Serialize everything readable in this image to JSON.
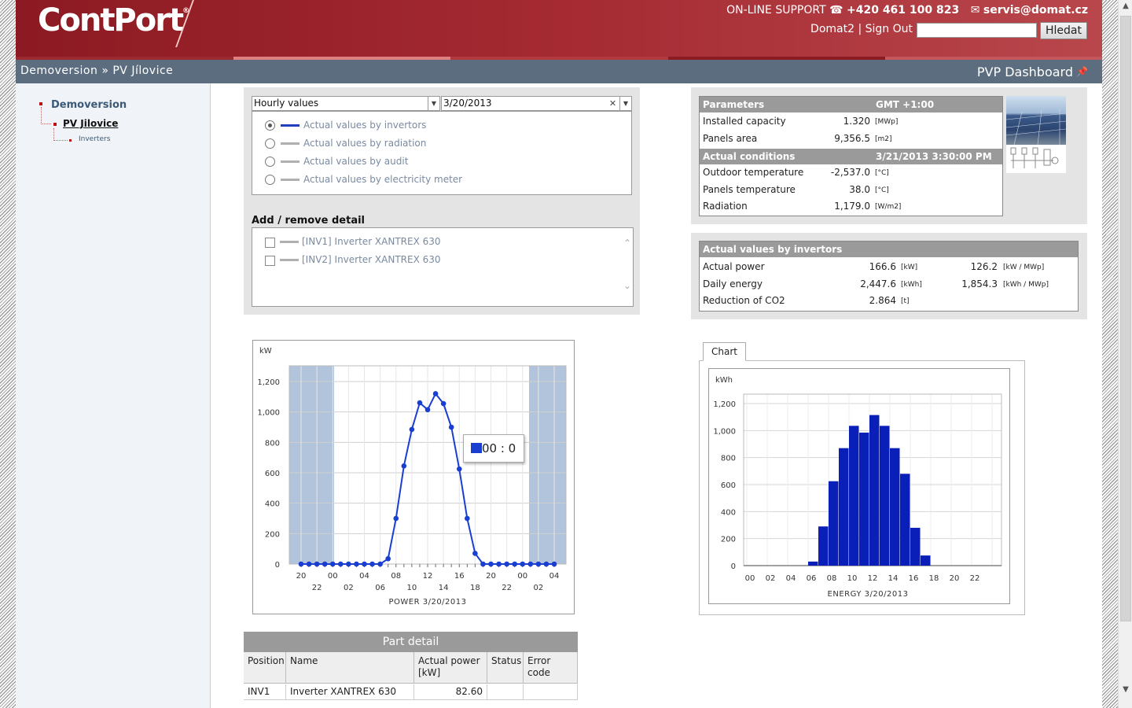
{
  "header": {
    "logo": "ContPort",
    "logo_reg": "®",
    "support_label": "ON-LINE SUPPORT",
    "phone": "+420 461 100 823",
    "email": "servis@domat.cz",
    "user_links": "Domat2 | Sign Out",
    "search_button": "Hledat"
  },
  "breadcrumb": {
    "root": "Demoversion",
    "sep": "»",
    "current": "PV Jílovice",
    "page_title": "PVP Dashboard"
  },
  "sidebar": {
    "items": [
      {
        "label": "Demoversion"
      },
      {
        "label": "PV Jilovice"
      },
      {
        "label": "Inverters"
      }
    ]
  },
  "controls": {
    "interval": "Hourly values",
    "date": "3/20/2013",
    "options": [
      {
        "label": "Actual values by invertors",
        "selected": true,
        "color": "#1f3fbf"
      },
      {
        "label": "Actual values by radiation",
        "selected": false,
        "color": "#b0b0b0"
      },
      {
        "label": "Actual values by audit",
        "selected": false,
        "color": "#b0b0b0"
      },
      {
        "label": "Actual values by electricity meter",
        "selected": false,
        "color": "#b0b0b0"
      }
    ],
    "detail_title": "Add / remove detail",
    "details": [
      {
        "label": "[INV1] Inverter XANTREX 630",
        "checked": false
      },
      {
        "label": "[INV2] Inverter XANTREX 630",
        "checked": false
      }
    ]
  },
  "parameters": {
    "title": "Parameters",
    "timezone": "GMT +1:00",
    "rows": [
      {
        "label": "Installed capacity",
        "value": "1.320",
        "unit": "[MWp]"
      },
      {
        "label": "Panels area",
        "value": "9,356.5",
        "unit": "[m2]"
      }
    ],
    "conditions_title": "Actual conditions",
    "conditions_time": "3/21/2013 3:30:00 PM",
    "conditions": [
      {
        "label": "Outdoor temperature",
        "value": "-2,537.0",
        "unit": "[°C]"
      },
      {
        "label": "Panels temperature",
        "value": "38.0",
        "unit": "[°C]"
      },
      {
        "label": "Radiation",
        "value": "1,179.0",
        "unit": "[W/m2]"
      }
    ]
  },
  "actual_values": {
    "title": "Actual values by invertors",
    "rows": [
      {
        "label": "Actual power",
        "value": "166.6",
        "unit": "[kW]",
        "value2": "126.2",
        "unit2": "[kW / MWp]"
      },
      {
        "label": "Daily energy",
        "value": "2,447.6",
        "unit": "[kWh]",
        "value2": "1,854.3",
        "unit2": "[kWh / MWp]"
      },
      {
        "label": "Reduction of CO2",
        "value": "2.864",
        "unit": "[t]",
        "value2": "",
        "unit2": ""
      }
    ]
  },
  "power_chart": {
    "tooltip": "00 : 0"
  },
  "energy_tab": "Chart",
  "part_detail": {
    "title": "Part detail",
    "columns": [
      "Position",
      "Name",
      "Actual power [kW]",
      "Status",
      "Error code"
    ],
    "rows": [
      [
        "INV1",
        "Inverter XANTREX 630",
        "82.60",
        "",
        ""
      ]
    ]
  },
  "chart_data": [
    {
      "type": "line",
      "title": "",
      "xlabel": "POWER 3/20/2013",
      "ylabel": "kW",
      "ylim": [
        0,
        1200
      ],
      "yticks": [
        "0",
        "200",
        "400",
        "600",
        "800",
        "1,000",
        "1,200"
      ],
      "xticks_top": [
        "20",
        "00",
        "04",
        "08",
        "12",
        "16",
        "20",
        "00",
        "04"
      ],
      "xticks_bottom": [
        "22",
        "02",
        "06",
        "10",
        "14",
        "18",
        "22",
        "02"
      ],
      "series": [
        {
          "color": "#1a3fd0",
          "values": [
            0,
            0,
            0,
            0,
            0,
            0,
            0,
            0,
            0,
            0,
            0,
            35,
            300,
            645,
            885,
            1060,
            1015,
            1120,
            1055,
            900,
            625,
            300,
            70,
            0,
            0,
            0,
            0,
            0,
            0,
            0,
            0,
            0,
            0
          ]
        }
      ],
      "night_shading": [
        [
          "20",
          "00"
        ],
        [
          "00",
          "04"
        ]
      ],
      "grid": true
    },
    {
      "type": "bar",
      "title": "",
      "xlabel": "ENERGY 3/20/2013",
      "ylabel": "kWh",
      "ylim": [
        0,
        1200
      ],
      "yticks": [
        "0",
        "200",
        "400",
        "600",
        "800",
        "1,000",
        "1,200"
      ],
      "xticks": [
        "00",
        "02",
        "04",
        "06",
        "08",
        "10",
        "12",
        "14",
        "16",
        "18",
        "20",
        "22"
      ],
      "series": [
        {
          "color": "#0a1eb8",
          "values": [
            0,
            0,
            0,
            0,
            0,
            0,
            30,
            290,
            625,
            870,
            1035,
            985,
            1115,
            1035,
            870,
            680,
            280,
            75,
            0,
            0,
            0,
            0,
            0,
            0
          ]
        }
      ],
      "grid": true
    }
  ]
}
